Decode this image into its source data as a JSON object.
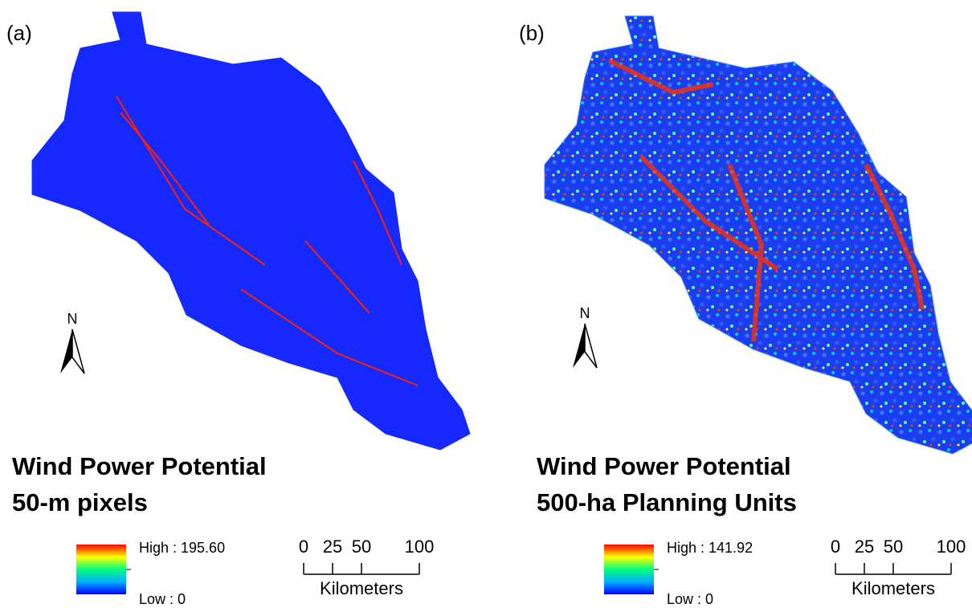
{
  "panels": [
    {
      "label": "(a)",
      "title_lines": [
        "Wind Power Potential",
        "50-m pixels"
      ],
      "legend": {
        "high": "High : 195.60",
        "low": "Low : 0"
      },
      "north": "N",
      "scale_bar": {
        "range": [
          0,
          100
        ],
        "ticks": [
          0,
          25,
          50,
          100
        ],
        "unit": "Kilometers"
      }
    },
    {
      "label": "(b)",
      "title_lines": [
        "Wind Power Potential",
        "500-ha Planning Units"
      ],
      "legend": {
        "high": "High : 141.92",
        "low": "Low : 0"
      },
      "north": "N",
      "scale_bar": {
        "range": [
          0,
          100
        ],
        "ticks": [
          0,
          25,
          50,
          100
        ],
        "unit": "Kilometers"
      }
    }
  ]
}
